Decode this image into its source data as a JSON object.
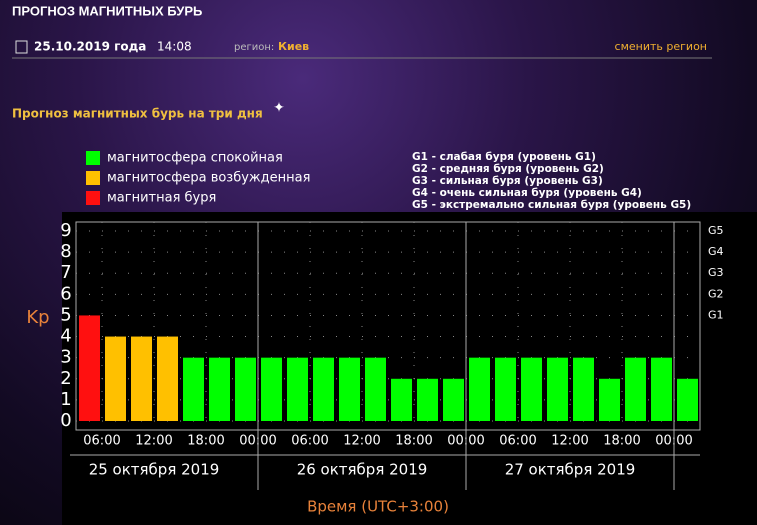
{
  "header": {
    "title": "ПРОГНОЗ МАГНИТНЫХ БУРЬ",
    "date": "25.10.2019 года",
    "time": "14:08",
    "region_label": "регион:",
    "region": "Киев",
    "change_region": "сменить регион"
  },
  "section_title": "Прогноз магнитных бурь на три дня",
  "legend": [
    {
      "name": "магнитосфера спокойная",
      "color": "#00ff00"
    },
    {
      "name": "магнитосфера возбужденная",
      "color": "#ffc000"
    },
    {
      "name": "магнитная буря",
      "color": "#ff1010"
    }
  ],
  "g_scale": [
    "G1 - слабая буря (уровень G1)",
    "G2 - средняя буря (уровень G2)",
    "G3 - сильная буря (уровень G3)",
    "G4 - очень сильная буря (уровень G4)",
    "G5 - экстремально сильная буря (уровень G5)"
  ],
  "chart_data": {
    "type": "bar",
    "ylabel": "Kp",
    "xlabel": "Время (UTC+3:00)",
    "values": [
      5,
      4,
      4,
      4,
      3,
      3,
      3,
      3,
      3,
      3,
      3,
      3,
      2,
      2,
      2,
      3,
      3,
      3,
      3,
      3,
      2,
      3,
      3,
      2
    ],
    "colors": [
      "#ff1010",
      "#ffc000",
      "#ffc000",
      "#ffc000",
      "#00ff00",
      "#00ff00",
      "#00ff00",
      "#00ff00",
      "#00ff00",
      "#00ff00",
      "#00ff00",
      "#00ff00",
      "#00ff00",
      "#00ff00",
      "#00ff00",
      "#00ff00",
      "#00ff00",
      "#00ff00",
      "#00ff00",
      "#00ff00",
      "#00ff00",
      "#00ff00",
      "#00ff00",
      "#00ff00"
    ],
    "tick_labels": [
      "06:00",
      "12:00",
      "18:00",
      "00:00",
      "06:00",
      "12:00",
      "18:00",
      "00:00",
      "06:00",
      "12:00",
      "18:00",
      "00:00"
    ],
    "days": [
      "25 октября 2019",
      "26 октября 2019",
      "27 октября 2019"
    ],
    "ylim": [
      0,
      9
    ],
    "yticks": [
      0,
      1,
      2,
      3,
      4,
      5,
      6,
      7,
      8,
      9
    ],
    "y2ticks": [
      {
        "value": 5,
        "label": "G1"
      },
      {
        "value": 6,
        "label": "G2"
      },
      {
        "value": 7,
        "label": "G3"
      },
      {
        "value": 8,
        "label": "G4"
      },
      {
        "value": 9,
        "label": "G5"
      }
    ],
    "grid": true
  }
}
